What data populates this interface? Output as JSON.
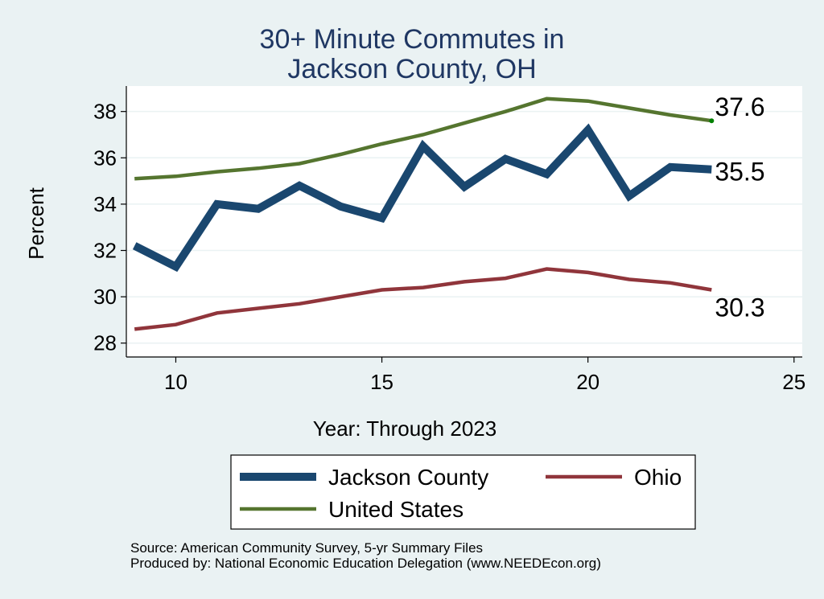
{
  "chart_data": {
    "type": "line",
    "title": [
      "30+ Minute Commutes in",
      "Jackson County, OH"
    ],
    "xlabel": "Year: Through 2023",
    "ylabel": "Percent",
    "xlim": [
      8.8,
      25.2
    ],
    "ylim": [
      27.4,
      39.1
    ],
    "xticks": [
      10,
      15,
      20,
      25
    ],
    "yticks": [
      28,
      30,
      32,
      34,
      36,
      38
    ],
    "grid": true,
    "x": [
      9,
      10,
      11,
      12,
      13,
      14,
      15,
      16,
      17,
      18,
      19,
      20,
      21,
      22,
      23
    ],
    "series": [
      {
        "name": "Jackson County",
        "color": "#1a476f",
        "values": [
          32.2,
          31.3,
          34.0,
          33.8,
          34.8,
          33.9,
          33.4,
          36.5,
          34.75,
          35.95,
          35.3,
          37.2,
          34.35,
          35.6,
          35.5
        ],
        "end_label": "35.5"
      },
      {
        "name": "Ohio",
        "color": "#90353b",
        "values": [
          28.6,
          28.8,
          29.3,
          29.5,
          29.7,
          30.0,
          30.3,
          30.4,
          30.65,
          30.8,
          31.2,
          31.05,
          30.75,
          30.6,
          30.3
        ],
        "end_label": "30.3"
      },
      {
        "name": "United States",
        "color": "#55752f",
        "values": [
          35.1,
          35.2,
          35.4,
          35.55,
          35.75,
          36.15,
          36.6,
          37.0,
          37.5,
          38.0,
          38.55,
          38.45,
          38.15,
          37.85,
          37.6
        ],
        "end_label": "37.6"
      }
    ],
    "legend": {
      "position": "bottom",
      "entries": [
        "Jackson County",
        "Ohio",
        "United States"
      ]
    },
    "source": [
      "Source: American Community Survey, 5-yr Summary Files",
      "Produced by: National Economic Education Delegation (www.NEEDEcon.org)"
    ]
  },
  "colors": {
    "background": "#eaf2f3",
    "plot_background": "#ffffff",
    "gridline": "#eaf2f3",
    "title": "#1f3763",
    "end_dot": "#008000"
  }
}
